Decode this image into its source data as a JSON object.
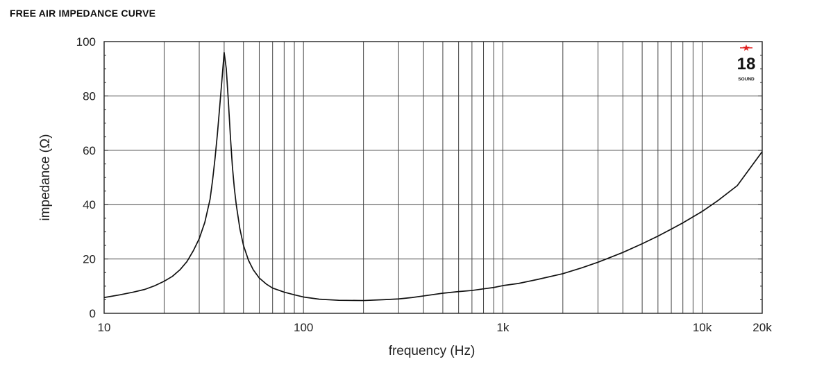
{
  "page": {
    "title": "FREE AIR IMPEDANCE CURVE"
  },
  "logo": {
    "number": "18",
    "brand": "SOUND",
    "star_color": "#e02020"
  },
  "chart_data": {
    "type": "line",
    "title": "",
    "xlabel": "frequency (Hz)",
    "ylabel": "impedance (Ω)",
    "x_scale": "log",
    "xlim": [
      10,
      20000
    ],
    "ylim": [
      0,
      100
    ],
    "grid": true,
    "x_major_ticks": [
      {
        "value": 10,
        "label": "10"
      },
      {
        "value": 100,
        "label": "100"
      },
      {
        "value": 1000,
        "label": "1k"
      },
      {
        "value": 10000,
        "label": "10k"
      },
      {
        "value": 20000,
        "label": "20k"
      }
    ],
    "x_grid_lines": [
      20,
      30,
      40,
      50,
      60,
      70,
      80,
      90,
      100,
      200,
      300,
      400,
      500,
      600,
      700,
      800,
      900,
      1000,
      2000,
      3000,
      4000,
      5000,
      6000,
      7000,
      8000,
      9000,
      10000
    ],
    "y_ticks": [
      0,
      20,
      40,
      60,
      80,
      100
    ],
    "line_color": "#111111",
    "series": [
      {
        "x": [
          10,
          12,
          14,
          16,
          18,
          20,
          22,
          24,
          26,
          28,
          30,
          32,
          34,
          35,
          36,
          37,
          38,
          39,
          40,
          41,
          42,
          43,
          44,
          45,
          46,
          48,
          50,
          53,
          56,
          60,
          65,
          70,
          80,
          90,
          100,
          120,
          150,
          200,
          250,
          300,
          350,
          400,
          500,
          600,
          700,
          800,
          900,
          1000,
          1200,
          1500,
          2000,
          2500,
          3000,
          4000,
          5000,
          6000,
          7000,
          8000,
          10000,
          12000,
          15000,
          20000
        ],
        "y": [
          5.8,
          6.8,
          7.8,
          8.8,
          10.2,
          11.8,
          13.6,
          16.0,
          19.0,
          23.0,
          27.5,
          33.5,
          42.0,
          49.0,
          57.0,
          66.0,
          76.0,
          86.0,
          96.0,
          90.0,
          78.0,
          65.0,
          54.0,
          46.0,
          40.0,
          31.0,
          25.0,
          19.5,
          16.0,
          13.0,
          10.8,
          9.3,
          7.8,
          6.8,
          6.0,
          5.2,
          4.8,
          4.7,
          5.0,
          5.3,
          5.8,
          6.4,
          7.4,
          8.0,
          8.4,
          9.0,
          9.5,
          10.2,
          11.0,
          12.5,
          14.6,
          16.8,
          18.8,
          22.4,
          25.6,
          28.4,
          31.0,
          33.3,
          37.5,
          41.5,
          47.0,
          59.5
        ]
      }
    ]
  }
}
